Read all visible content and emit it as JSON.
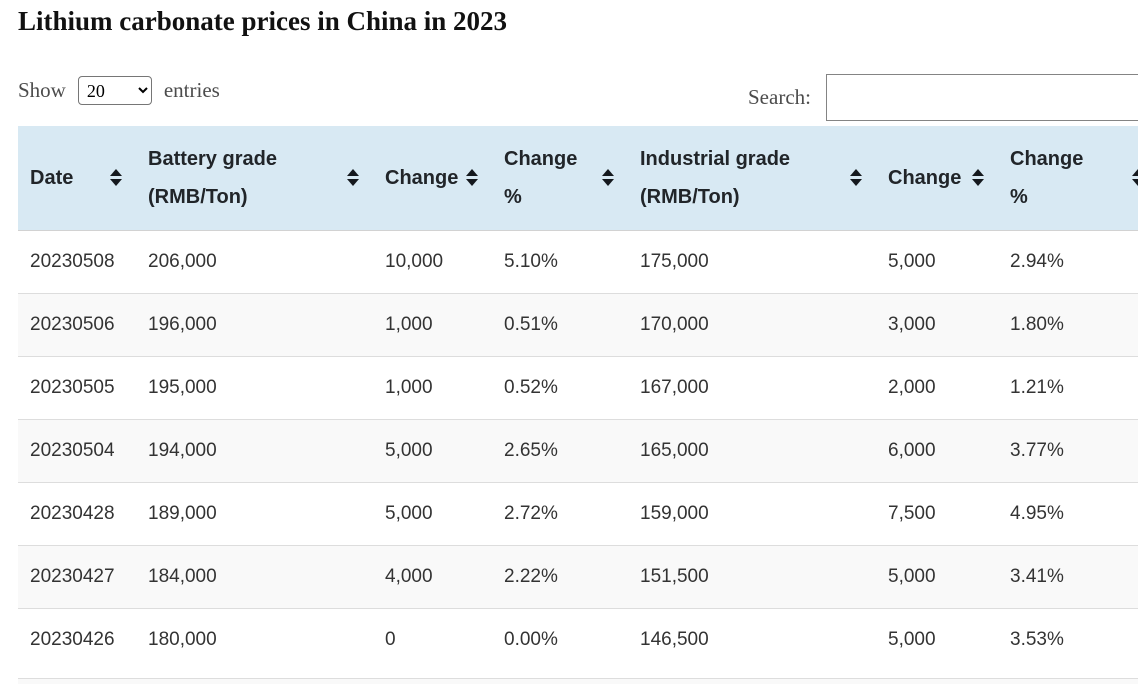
{
  "page": {
    "title": "Lithium carbonate prices in China in 2023"
  },
  "controls": {
    "show_label": "Show",
    "page_size": "20",
    "entries_label": "entries",
    "search_label": "Search:",
    "search_value": ""
  },
  "table": {
    "columns": [
      {
        "label": "Date",
        "sortable": true
      },
      {
        "label": "Battery grade (RMB/Ton)",
        "sortable": true
      },
      {
        "label": "Change",
        "sortable": true
      },
      {
        "label": "Change %",
        "sortable": true
      },
      {
        "label": "Industrial grade (RMB/Ton)",
        "sortable": true
      },
      {
        "label": "Change",
        "sortable": true
      },
      {
        "label": "Change %",
        "sortable": true
      }
    ],
    "rows": [
      [
        "20230508",
        "206,000",
        "10,000",
        "5.10%",
        "175,000",
        "5,000",
        "2.94%"
      ],
      [
        "20230506",
        "196,000",
        "1,000",
        "0.51%",
        "170,000",
        "3,000",
        "1.80%"
      ],
      [
        "20230505",
        "195,000",
        "1,000",
        "0.52%",
        "167,000",
        "2,000",
        "1.21%"
      ],
      [
        "20230504",
        "194,000",
        "5,000",
        "2.65%",
        "165,000",
        "6,000",
        "3.77%"
      ],
      [
        "20230428",
        "189,000",
        "5,000",
        "2.72%",
        "159,000",
        "7,500",
        "4.95%"
      ],
      [
        "20230427",
        "184,000",
        "4,000",
        "2.22%",
        "151,500",
        "5,000",
        "3.41%"
      ],
      [
        "20230426",
        "180,000",
        "0",
        "0.00%",
        "146,500",
        "5,000",
        "3.53%"
      ]
    ]
  },
  "icons": {
    "sort_icon": "sort-both-arrows",
    "select_chevron": "chevron-down"
  },
  "colors": {
    "header_bg": "#d8e9f3",
    "stripe_bg": "#f9f9f9",
    "row_border": "#dddddd",
    "header_text": "#212529",
    "cell_text": "#333333",
    "muted_text": "#4c4c4c",
    "title_text": "#111111",
    "input_border": "#848484"
  }
}
